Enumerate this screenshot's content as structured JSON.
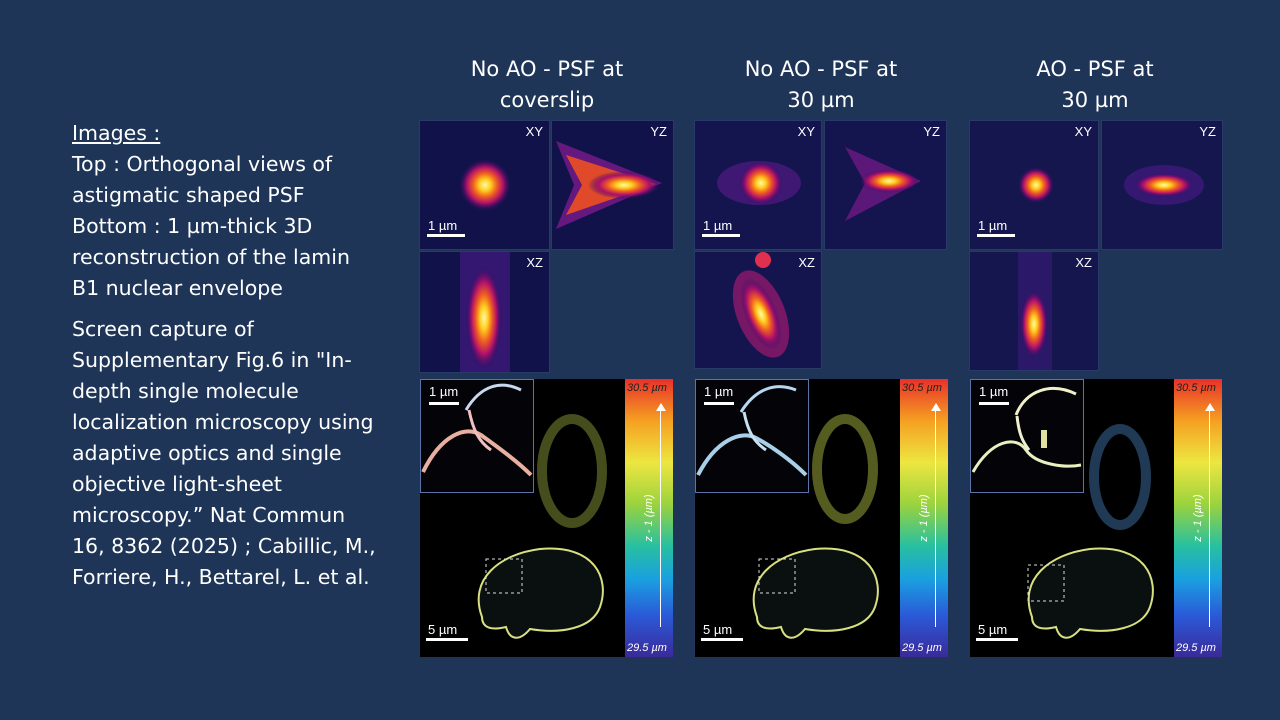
{
  "sidebar": {
    "images_heading": "Images :",
    "top_desc": "Top : Orthogonal views of astigmatic shaped PSF",
    "bottom_desc": "Bottom : 1 µm-thick 3D reconstruction of the lamin B1 nuclear envelope",
    "citation": "Screen capture of Supplementary Fig.6 in \"In-depth single molecule localization microscopy using adaptive optics and single objective light-sheet microscopy.” Nat Commun 16, 8362 (2025) ; Cabillic, M., Forriere, H., Bettarel, L. et al."
  },
  "columns": [
    {
      "title_line1": "No AO - PSF at",
      "title_line2": "coverslip"
    },
    {
      "title_line1": "No AO - PSF at",
      "title_line2": "30 µm"
    },
    {
      "title_line1": "AO - PSF at",
      "title_line2": "30 µm"
    }
  ],
  "labels": {
    "xy": "XY",
    "yz": "YZ",
    "xz": "XZ",
    "scale_1um": "1 µm",
    "scale_5um": "5 µm",
    "cbar_top": "30.5 µm",
    "cbar_bottom": "29.5 µm",
    "cbar_axis": "z - 1 (µm)"
  }
}
